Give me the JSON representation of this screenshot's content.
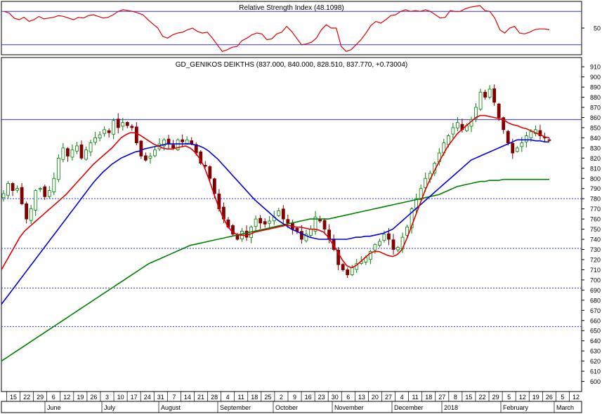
{
  "chart_data": [
    {
      "panel": "rsi",
      "type": "line",
      "title": "Relative Strength Index (48.1098)",
      "yaxis_ticks": [
        50
      ],
      "hlines": [
        70,
        30
      ],
      "ylim": [
        18,
        82
      ],
      "color": "#e00000",
      "series": [
        {
          "values": [
            70,
            68,
            62,
            60,
            63,
            58,
            60,
            64,
            61,
            62,
            63,
            65,
            64,
            62,
            60,
            63,
            62,
            65,
            66,
            64,
            62,
            63,
            66,
            70,
            72,
            71,
            70,
            68,
            66,
            60,
            55,
            50,
            40,
            38,
            42,
            44,
            45,
            48,
            50,
            46,
            44,
            45,
            38,
            30,
            22,
            24,
            27,
            28,
            35,
            38,
            42,
            44,
            43,
            36,
            37,
            43,
            45,
            52,
            46,
            38,
            30,
            31,
            33,
            38,
            48,
            54,
            50,
            50,
            28,
            22,
            24,
            30,
            36,
            44,
            53,
            58,
            56,
            60,
            65,
            66,
            70,
            72,
            70,
            71,
            70,
            72,
            70,
            66,
            62,
            63,
            71,
            70,
            70,
            73,
            75,
            76,
            77,
            71,
            70,
            62,
            48,
            44,
            50,
            52,
            44,
            43,
            45,
            48,
            49,
            49,
            48
          ]
        }
      ]
    },
    {
      "panel": "price",
      "type": "candlestick",
      "title": "GD_GENIKOS DEIKTHS (837.000, 840.000, 828.510, 837.770, +0.73004)",
      "ylim": [
        590,
        915
      ],
      "yaxis_ticks": [
        600,
        610,
        620,
        630,
        640,
        650,
        660,
        670,
        680,
        690,
        700,
        710,
        720,
        730,
        740,
        750,
        760,
        770,
        780,
        790,
        800,
        810,
        820,
        830,
        840,
        850,
        860,
        870,
        880,
        890,
        900,
        910
      ],
      "hlines_solid": [
        858
      ],
      "hlines_dotted": [
        780,
        731,
        692,
        654
      ],
      "x_tick_labels": [
        "15",
        "22",
        "29",
        "6",
        "12",
        "19",
        "26",
        "3",
        "10",
        "17",
        "24",
        "31",
        "7",
        "14",
        "21",
        "28",
        "4",
        "11",
        "18",
        "25",
        "2",
        "9",
        "16",
        "23",
        "30",
        "6",
        "13",
        "20",
        "27",
        "4",
        "11",
        "18",
        "27",
        "8",
        "15",
        "22",
        "29",
        "5",
        "12",
        "19",
        "26",
        "5",
        "12"
      ],
      "month_labels": [
        "June",
        "July",
        "August",
        "September",
        "October",
        "November",
        "December",
        "2018",
        "February",
        "March"
      ],
      "closes": [
        785,
        795,
        788,
        790,
        775,
        760,
        770,
        788,
        790,
        782,
        788,
        800,
        820,
        830,
        822,
        828,
        832,
        820,
        828,
        835,
        840,
        843,
        848,
        845,
        857,
        850,
        855,
        852,
        850,
        835,
        822,
        818,
        822,
        828,
        834,
        838,
        834,
        830,
        838,
        836,
        838,
        834,
        825,
        815,
        812,
        800,
        785,
        770,
        760,
        752,
        745,
        740,
        748,
        742,
        752,
        760,
        756,
        755,
        758,
        762,
        768,
        760,
        756,
        750,
        748,
        740,
        745,
        750,
        762,
        758,
        750,
        740,
        730,
        715,
        710,
        705,
        712,
        716,
        718,
        722,
        728,
        735,
        738,
        745,
        740,
        730,
        732,
        742,
        752,
        770,
        780,
        790,
        800,
        805,
        815,
        825,
        835,
        842,
        850,
        855,
        848,
        852,
        858,
        870,
        885,
        880,
        888,
        875,
        860,
        848,
        835,
        825,
        830,
        835,
        842,
        846,
        848,
        842,
        840,
        838
      ],
      "ma_red": [
        710,
        718,
        726,
        734,
        742,
        748,
        752,
        756,
        760,
        764,
        768,
        772,
        776,
        780,
        784,
        789,
        794,
        799,
        804,
        809,
        814,
        818,
        822,
        826,
        830,
        835,
        840,
        843,
        845,
        845,
        843,
        840,
        837,
        834,
        832,
        830,
        829,
        829,
        830,
        831,
        832,
        830,
        826,
        820,
        812,
        800,
        787,
        774,
        763,
        754,
        748,
        745,
        744,
        744,
        745,
        747,
        748,
        749,
        750,
        751,
        752,
        753,
        754,
        753,
        752,
        752,
        751,
        750,
        750,
        749,
        747,
        742,
        735,
        728,
        720,
        714,
        712,
        714,
        718,
        722,
        726,
        728,
        728,
        726,
        724,
        723,
        725,
        730,
        740,
        752,
        764,
        776,
        788,
        798,
        807,
        816,
        824,
        832,
        838,
        844,
        848,
        852,
        856,
        860,
        862,
        862,
        861,
        860,
        859,
        858,
        855,
        853,
        852,
        850,
        849,
        847,
        845,
        843,
        841,
        840
      ],
      "ma_blue": [
        676,
        682,
        688,
        694,
        700,
        706,
        712,
        718,
        724,
        730,
        736,
        742,
        748,
        754,
        760,
        766,
        772,
        778,
        784,
        790,
        796,
        801,
        806,
        810,
        814,
        817,
        820,
        822,
        824,
        826,
        827,
        829,
        830,
        831,
        832,
        833,
        834,
        834,
        834,
        834,
        834,
        834,
        833,
        832,
        830,
        827,
        823,
        819,
        814,
        809,
        804,
        799,
        794,
        789,
        784,
        779,
        775,
        771,
        767,
        763,
        759,
        756,
        753,
        750,
        748,
        746,
        744,
        742,
        741,
        740,
        740,
        740,
        740,
        740,
        740,
        740,
        741,
        742,
        742,
        743,
        743,
        744,
        745,
        746,
        748,
        750,
        754,
        758,
        762,
        766,
        770,
        774,
        778,
        782,
        786,
        790,
        794,
        798,
        802,
        806,
        810,
        814,
        818,
        820,
        822,
        824,
        826,
        828,
        830,
        832,
        834,
        836,
        838,
        838,
        838,
        838,
        837,
        837,
        836,
        836
      ],
      "ma_green": [
        620,
        623,
        626,
        629,
        632,
        635,
        638,
        641,
        644,
        647,
        650,
        653,
        656,
        659,
        662,
        665,
        668,
        671,
        674,
        677,
        680,
        683,
        686,
        689,
        692,
        695,
        698,
        701,
        704,
        707,
        710,
        713,
        716,
        718,
        720,
        722,
        724,
        726,
        728,
        730,
        732,
        734,
        735,
        736,
        737,
        738,
        739,
        740,
        741,
        742,
        743,
        744,
        745,
        746,
        747,
        748,
        749,
        750,
        751,
        752,
        753,
        754,
        755,
        756,
        757,
        758,
        759,
        760,
        760,
        760,
        760,
        760,
        761,
        762,
        763,
        764,
        765,
        766,
        767,
        768,
        769,
        770,
        771,
        772,
        773,
        774,
        775,
        776,
        777,
        778,
        779,
        780,
        781,
        782,
        783,
        784,
        786,
        788,
        790,
        792,
        793,
        794,
        795,
        796,
        797,
        797,
        798,
        798,
        798,
        799,
        799,
        799,
        799,
        799,
        799,
        799,
        799,
        799,
        799,
        799
      ]
    }
  ]
}
